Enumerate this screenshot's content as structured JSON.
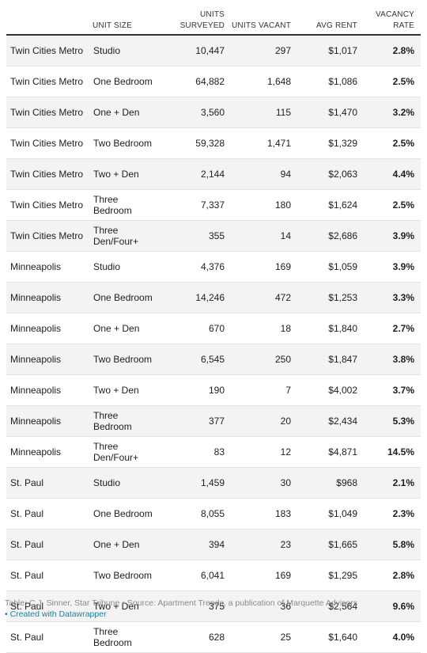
{
  "headers": {
    "area": "",
    "unit_size": "UNIT SIZE",
    "units_surveyed": "UNITS SURVEYED",
    "units_vacant": "UNITS VACANT",
    "avg_rent": "AVG RENT",
    "vacancy_rate": "VACANCY RATE"
  },
  "rows": [
    [
      "Twin Cities Metro",
      "Studio",
      "10,447",
      "297",
      "$1,017",
      "2.8%"
    ],
    [
      "Twin Cities Metro",
      "One Bedroom",
      "64,882",
      "1,648",
      "$1,086",
      "2.5%"
    ],
    [
      "Twin Cities Metro",
      "One + Den",
      "3,560",
      "115",
      "$1,470",
      "3.2%"
    ],
    [
      "Twin Cities Metro",
      "Two Bedroom",
      "59,328",
      "1,471",
      "$1,329",
      "2.5%"
    ],
    [
      "Twin Cities Metro",
      "Two + Den",
      "2,144",
      "94",
      "$2,063",
      "4.4%"
    ],
    [
      "Twin Cities Metro",
      "Three Bedroom",
      "7,337",
      "180",
      "$1,624",
      "2.5%"
    ],
    [
      "Twin Cities Metro",
      "Three Den/Four+",
      "355",
      "14",
      "$2,686",
      "3.9%"
    ],
    [
      "Minneapolis",
      "Studio",
      "4,376",
      "169",
      "$1,059",
      "3.9%"
    ],
    [
      "Minneapolis",
      "One Bedroom",
      "14,246",
      "472",
      "$1,253",
      "3.3%"
    ],
    [
      "Minneapolis",
      "One + Den",
      "670",
      "18",
      "$1,840",
      "2.7%"
    ],
    [
      "Minneapolis",
      "Two Bedroom",
      "6,545",
      "250",
      "$1,847",
      "3.8%"
    ],
    [
      "Minneapolis",
      "Two + Den",
      "190",
      "7",
      "$4,002",
      "3.7%"
    ],
    [
      "Minneapolis",
      "Three Bedroom",
      "377",
      "20",
      "$2,434",
      "5.3%"
    ],
    [
      "Minneapolis",
      "Three Den/Four+",
      "83",
      "12",
      "$4,871",
      "14.5%"
    ],
    [
      "St. Paul",
      "Studio",
      "1,459",
      "30",
      "$968",
      "2.1%"
    ],
    [
      "St. Paul",
      "One Bedroom",
      "8,055",
      "183",
      "$1,049",
      "2.3%"
    ],
    [
      "St. Paul",
      "One + Den",
      "394",
      "23",
      "$1,665",
      "5.8%"
    ],
    [
      "St. Paul",
      "Two Bedroom",
      "6,041",
      "169",
      "$1,295",
      "2.8%"
    ],
    [
      "St. Paul",
      "Two + Den",
      "375",
      "36",
      "$2,564",
      "9.6%"
    ],
    [
      "St. Paul",
      "Three Bedroom",
      "628",
      "25",
      "$1,640",
      "4.0%"
    ]
  ],
  "footer": {
    "source": "Table: C.J. Sinner, Star Tribune • Source: Apartment Trends, a publication of Marquette Advisors",
    "credit": "• Created with Datawrapper"
  }
}
